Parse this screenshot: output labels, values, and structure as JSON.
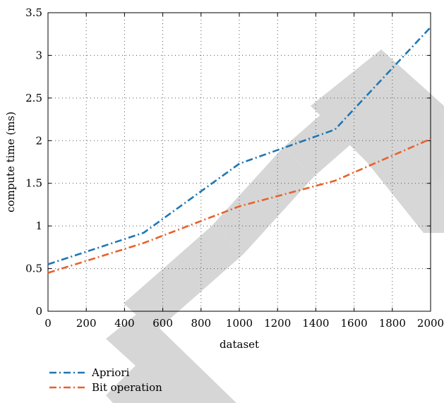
{
  "chart_data": {
    "type": "line",
    "xlabel": "dataset",
    "ylabel": "compute time (ms)",
    "xlim": [
      0,
      2000
    ],
    "ylim": [
      0,
      3.5
    ],
    "xticks": [
      0,
      200,
      400,
      600,
      800,
      1000,
      1200,
      1400,
      1600,
      1800,
      2000
    ],
    "yticks": [
      0,
      0.5,
      1,
      1.5,
      2,
      2.5,
      3,
      3.5
    ],
    "ytick_labels": [
      "0",
      "0.5",
      "1",
      "1.5",
      "2",
      "2.5",
      "3",
      "3.5"
    ],
    "grid": true,
    "legend_position": "below",
    "x": [
      0,
      500,
      1000,
      1500,
      2000
    ],
    "series": [
      {
        "name": "Apriori",
        "color": "#1f77b4",
        "values": [
          0.55,
          0.92,
          1.73,
          2.13,
          3.33
        ]
      },
      {
        "name": "Bit operation",
        "color": "#e8612c",
        "values": [
          0.45,
          0.8,
          1.23,
          1.53,
          2.02
        ]
      }
    ]
  }
}
